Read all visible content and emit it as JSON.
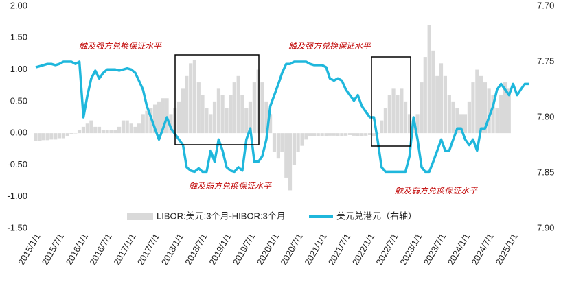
{
  "chart_data": {
    "type": "combo",
    "annotations": [
      "触及强方兑换保证水平",
      "触及强方兑换保证水平",
      "触及弱方兑换保证水平",
      "触及弱方兑换保证水平"
    ],
    "x": [
      "2015/1/1",
      "2015/2/1",
      "2015/3/1",
      "2015/4/1",
      "2015/5/1",
      "2015/6/1",
      "2015/7/1",
      "2015/8/1",
      "2015/9/1",
      "2015/10/1",
      "2015/11/1",
      "2015/12/1",
      "2016/1/1",
      "2016/2/1",
      "2016/3/1",
      "2016/4/1",
      "2016/5/1",
      "2016/6/1",
      "2016/7/1",
      "2016/8/1",
      "2016/9/1",
      "2016/10/1",
      "2016/11/1",
      "2016/12/1",
      "2017/1/1",
      "2017/2/1",
      "2017/3/1",
      "2017/4/1",
      "2017/5/1",
      "2017/6/1",
      "2017/7/1",
      "2017/8/1",
      "2017/9/1",
      "2017/10/1",
      "2017/11/1",
      "2017/12/1",
      "2018/1/1",
      "2018/2/1",
      "2018/3/1",
      "2018/4/1",
      "2018/5/1",
      "2018/6/1",
      "2018/7/1",
      "2018/8/1",
      "2018/9/1",
      "2018/10/1",
      "2018/11/1",
      "2018/12/1",
      "2019/1/1",
      "2019/2/1",
      "2019/3/1",
      "2019/4/1",
      "2019/5/1",
      "2019/6/1",
      "2019/7/1",
      "2019/8/1",
      "2019/9/1",
      "2019/10/1",
      "2019/11/1",
      "2019/12/1",
      "2020/1/1",
      "2020/2/1",
      "2020/3/1",
      "2020/4/1",
      "2020/5/1",
      "2020/6/1",
      "2020/7/1",
      "2020/8/1",
      "2020/9/1",
      "2020/10/1",
      "2020/11/1",
      "2020/12/1",
      "2021/1/1",
      "2021/2/1",
      "2021/3/1",
      "2021/4/1",
      "2021/5/1",
      "2021/6/1",
      "2021/7/1",
      "2021/8/1",
      "2021/9/1",
      "2021/10/1",
      "2021/11/1",
      "2021/12/1",
      "2022/1/1",
      "2022/2/1",
      "2022/3/1",
      "2022/4/1",
      "2022/5/1",
      "2022/6/1",
      "2022/7/1",
      "2022/8/1",
      "2022/9/1",
      "2022/10/1",
      "2022/11/1",
      "2022/12/1",
      "2023/1/1",
      "2023/2/1",
      "2023/3/1",
      "2023/4/1",
      "2023/5/1",
      "2023/6/1",
      "2023/7/1",
      "2023/8/1",
      "2023/9/1",
      "2023/10/1",
      "2023/11/1",
      "2023/12/1",
      "2024/1/1",
      "2024/2/1",
      "2024/3/1",
      "2024/4/1",
      "2024/5/1",
      "2024/6/1",
      "2024/7/1",
      "2024/8/1",
      "2024/9/1",
      "2024/10/1",
      "2024/11/1",
      "2024/12/1",
      "2025/1/1",
      "2025/2/1",
      "2025/3/1",
      "2025/4/1",
      "2025/5/1"
    ],
    "xlim": [
      "2015/1/1",
      "2025/5/1"
    ],
    "xticks": [
      "2015/1/1",
      "2015/7/1",
      "2016/1/1",
      "2016/7/1",
      "2017/1/1",
      "2017/7/1",
      "2018/1/1",
      "2018/7/1",
      "2019/1/1",
      "2019/7/1",
      "2020/1/1",
      "2020/7/1",
      "2021/1/1",
      "2021/7/1",
      "2022/1/1",
      "2022/7/1",
      "2023/1/1",
      "2023/7/1",
      "2024/1/1",
      "2024/7/1",
      "2025/1/1"
    ],
    "ylim": [
      -1.5,
      2
    ],
    "yticks": [
      {
        "value": -1.5,
        "label": "-1.50"
      },
      {
        "value": -1,
        "label": "-1.00"
      },
      {
        "value": -0.5,
        "label": "-0.50"
      },
      {
        "value": 0,
        "label": "0.00"
      },
      {
        "value": 0.5,
        "label": "0.50"
      },
      {
        "value": 1,
        "label": "1.00"
      },
      {
        "value": 1.5,
        "label": "1.50"
      },
      {
        "value": 2,
        "label": "2.00"
      }
    ],
    "y2lim": [
      7.9,
      7.7
    ],
    "y2ticks": [
      {
        "value": 7.9,
        "label": "7.90"
      },
      {
        "value": 7.85,
        "label": "7.85"
      },
      {
        "value": 7.8,
        "label": "7.80"
      },
      {
        "value": 7.75,
        "label": "7.75"
      },
      {
        "value": 7.7,
        "label": "7.70"
      }
    ],
    "series": [
      {
        "name": "LIBOR:美元:3个月-HIBOR:3个月",
        "type": "bar",
        "color": "#d9d9d9",
        "values": [
          -0.12,
          -0.12,
          -0.11,
          -0.11,
          -0.1,
          -0.1,
          -0.08,
          -0.08,
          -0.05,
          -0.02,
          0.0,
          0.05,
          0.1,
          0.15,
          0.2,
          0.1,
          0.1,
          0.05,
          0.05,
          0.05,
          0.05,
          0.1,
          0.2,
          0.2,
          0.15,
          0.1,
          0.15,
          0.3,
          0.35,
          0.4,
          0.45,
          0.5,
          0.55,
          0.55,
          0.3,
          0.4,
          0.5,
          0.7,
          0.9,
          1.1,
          1.15,
          0.8,
          0.6,
          0.4,
          0.3,
          0.5,
          0.7,
          0.6,
          0.4,
          0.6,
          0.8,
          0.9,
          0.6,
          0.4,
          0.5,
          0.8,
          1.0,
          0.8,
          0.5,
          0.3,
          -0.3,
          -0.4,
          -0.3,
          -0.7,
          -0.9,
          -0.5,
          -0.3,
          -0.2,
          -0.1,
          -0.05,
          -0.05,
          -0.05,
          -0.05,
          -0.05,
          -0.04,
          -0.04,
          -0.05,
          -0.05,
          -0.04,
          -0.03,
          -0.04,
          -0.05,
          -0.05,
          -0.04,
          -0.03,
          -0.05,
          0.0,
          0.2,
          0.4,
          0.6,
          0.7,
          0.6,
          0.7,
          0.5,
          0.3,
          0.2,
          0.3,
          0.8,
          1.2,
          1.7,
          1.3,
          0.9,
          1.1,
          0.9,
          0.6,
          0.5,
          0.4,
          0.3,
          0.3,
          0.5,
          0.8,
          1.0,
          0.9,
          0.8,
          0.7,
          0.6,
          0.4,
          0.6,
          0.8,
          0.7,
          null,
          null,
          null,
          null,
          null
        ]
      },
      {
        "name": "美元兑港元（右轴）",
        "type": "line",
        "axis": "y2",
        "color": "#1fb7dc",
        "values": [
          7.755,
          7.754,
          7.753,
          7.752,
          7.752,
          7.753,
          7.752,
          7.75,
          7.75,
          7.75,
          7.752,
          7.75,
          7.8,
          7.78,
          7.765,
          7.758,
          7.765,
          7.76,
          7.757,
          7.757,
          7.757,
          7.758,
          7.757,
          7.756,
          7.757,
          7.76,
          7.767,
          7.775,
          7.79,
          7.8,
          7.81,
          7.82,
          7.81,
          7.8,
          7.81,
          7.815,
          7.82,
          7.825,
          7.845,
          7.848,
          7.849,
          7.846,
          7.849,
          7.849,
          7.83,
          7.84,
          7.82,
          7.83,
          7.845,
          7.848,
          7.849,
          7.845,
          7.848,
          7.82,
          7.81,
          7.84,
          7.84,
          7.835,
          7.82,
          7.79,
          7.78,
          7.77,
          7.76,
          7.752,
          7.752,
          7.75,
          7.75,
          7.75,
          7.75,
          7.752,
          7.753,
          7.753,
          7.753,
          7.755,
          7.765,
          7.767,
          7.765,
          7.767,
          7.775,
          7.78,
          7.785,
          7.78,
          7.79,
          7.795,
          7.8,
          7.8,
          7.82,
          7.845,
          7.849,
          7.849,
          7.849,
          7.849,
          7.849,
          7.849,
          7.835,
          7.8,
          7.82,
          7.845,
          7.849,
          7.849,
          7.84,
          7.83,
          7.82,
          7.83,
          7.83,
          7.82,
          7.81,
          7.81,
          7.82,
          7.825,
          7.82,
          7.83,
          7.81,
          7.81,
          7.8,
          7.79,
          7.775,
          7.77,
          7.775,
          7.78,
          7.77,
          7.78,
          7.775,
          7.77,
          7.77
        ]
      }
    ]
  }
}
